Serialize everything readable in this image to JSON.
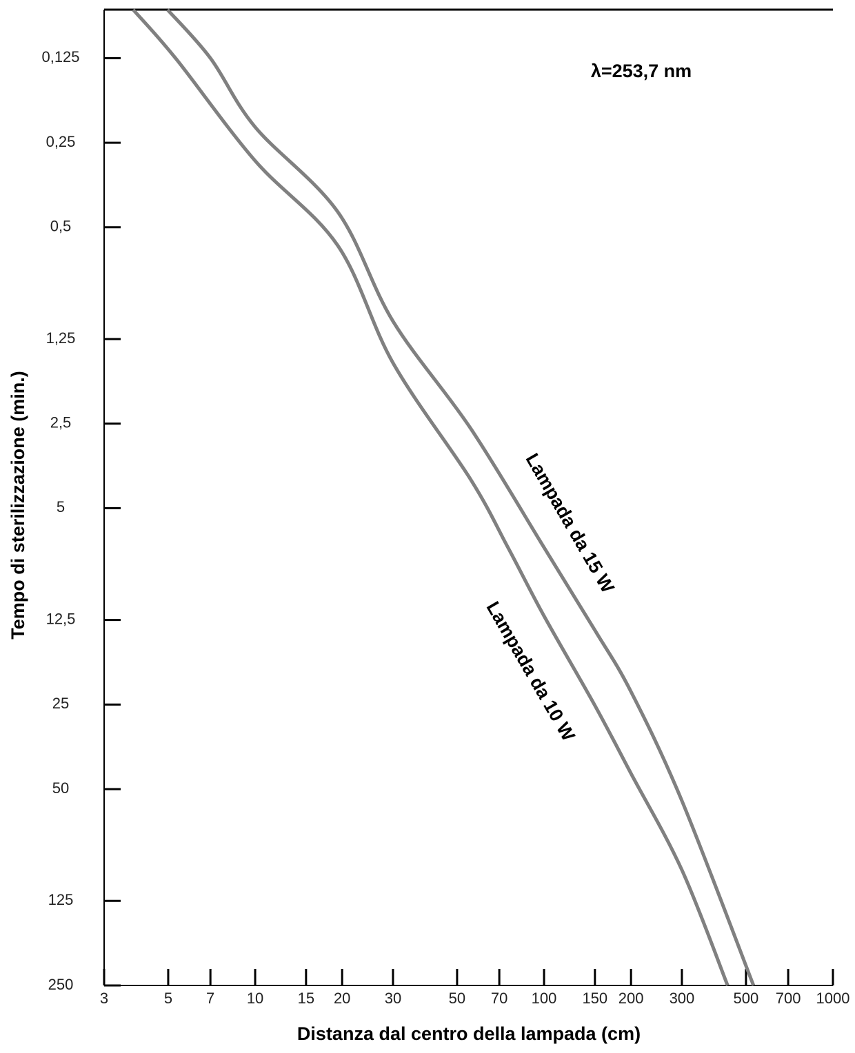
{
  "chart_data": {
    "type": "line",
    "y_axis_label": "Tempo di sterilizzazione (min.)",
    "x_axis_label": "Distanza dal centro della lampada (cm)",
    "annotation": "λ=253,7 nm",
    "x_log": true,
    "y_log": true,
    "xlim": [
      3,
      1000
    ],
    "ylim": [
      250,
      0.084
    ],
    "xticks": [
      3,
      5,
      7,
      10,
      15,
      20,
      30,
      50,
      70,
      100,
      150,
      200,
      300,
      500,
      700,
      1000
    ],
    "yticks": [
      {
        "value": 0.125,
        "label": "0,125"
      },
      {
        "value": 0.25,
        "label": "0,25"
      },
      {
        "value": 0.5,
        "label": "0,5"
      },
      {
        "value": 1.25,
        "label": "1,25"
      },
      {
        "value": 2.5,
        "label": "2,5"
      },
      5,
      {
        "value": 12.5,
        "label": "12,5"
      },
      25,
      50,
      125,
      250
    ],
    "series": [
      {
        "name": "Lampada da 15 W",
        "color": "#808080",
        "x": [
          4.97,
          7.0,
          10,
          19.3,
          30,
          55.7,
          100,
          150,
          200,
          300,
          531
        ],
        "values": [
          0.084,
          0.125,
          0.22,
          0.44,
          1.08,
          2.6,
          6.9,
          13.6,
          22.5,
          55,
          250
        ]
      },
      {
        "name": "Lampada da 10 W",
        "color": "#808080",
        "x": [
          3.78,
          5.3,
          10,
          19.3,
          30,
          55.7,
          75,
          100,
          150,
          200,
          300,
          432
        ],
        "values": [
          0.084,
          0.125,
          0.29,
          0.58,
          1.52,
          3.95,
          6.9,
          12.1,
          25.2,
          44,
          97,
          250
        ]
      }
    ]
  }
}
